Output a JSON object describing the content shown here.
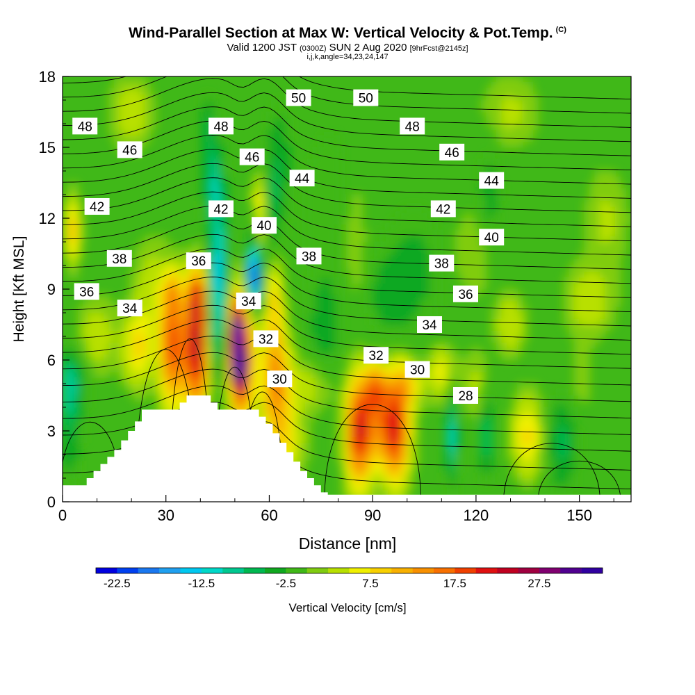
{
  "chart_data": {
    "type": "heatmap",
    "title": "Wind-Parallel Section at Max W: Vertical Velocity & Pot.Temp.",
    "copyright_mark": "(C)",
    "subtitle_valid": "Valid 1200 JST",
    "subtitle_utc": "(0300Z)",
    "subtitle_date": "SUN 2 Aug 2020",
    "subtitle_fcst": "[9hrFcst@2145z]",
    "params": "i,j,k,angle=34,23,24,147",
    "xlabel": "Distance [nm]",
    "ylabel": "Height [Kft MSL]",
    "xlim": [
      0,
      165
    ],
    "ylim": [
      0,
      18
    ],
    "xticks": [
      0,
      30,
      60,
      90,
      120,
      150
    ],
    "yticks": [
      0,
      3,
      6,
      9,
      12,
      15,
      18
    ],
    "colorbar_label": "Vertical Velocity [cm/s]",
    "colorbar_ticks": [
      "-22.5",
      "-12.5",
      "-2.5",
      "7.5",
      "17.5",
      "27.5"
    ],
    "colorbar_range": [
      -25,
      35
    ],
    "colorbar_step": 2.5,
    "colorbar_colors": [
      "#0000e0",
      "#0040f0",
      "#1a78f0",
      "#20a0f0",
      "#00c8f0",
      "#00d8c8",
      "#00c890",
      "#00b850",
      "#10a820",
      "#40b818",
      "#80cc10",
      "#b8e000",
      "#f0f000",
      "#f8d000",
      "#f8b000",
      "#f89000",
      "#f87000",
      "#f04000",
      "#e01010",
      "#c00020",
      "#a00040",
      "#800070",
      "#500090",
      "#3000a0"
    ],
    "theta_contour_labels": [
      {
        "text": "48",
        "x": 6.5,
        "y": 15.9
      },
      {
        "text": "46",
        "x": 19.5,
        "y": 14.9
      },
      {
        "text": "42",
        "x": 10,
        "y": 12.5
      },
      {
        "text": "38",
        "x": 16.5,
        "y": 10.3
      },
      {
        "text": "36",
        "x": 7,
        "y": 8.9
      },
      {
        "text": "34",
        "x": 19.5,
        "y": 8.2
      },
      {
        "text": "48",
        "x": 46,
        "y": 15.9
      },
      {
        "text": "42",
        "x": 46,
        "y": 12.4
      },
      {
        "text": "36",
        "x": 39.5,
        "y": 10.2
      },
      {
        "text": "46",
        "x": 55,
        "y": 14.6
      },
      {
        "text": "40",
        "x": 58.5,
        "y": 11.7
      },
      {
        "text": "34",
        "x": 54,
        "y": 8.5
      },
      {
        "text": "32",
        "x": 59,
        "y": 6.9
      },
      {
        "text": "30",
        "x": 63,
        "y": 5.2
      },
      {
        "text": "50",
        "x": 68.5,
        "y": 17.1
      },
      {
        "text": "44",
        "x": 69.5,
        "y": 13.7
      },
      {
        "text": "38",
        "x": 71.5,
        "y": 10.4
      },
      {
        "text": "50",
        "x": 88,
        "y": 17.1
      },
      {
        "text": "48",
        "x": 101.5,
        "y": 15.9
      },
      {
        "text": "32",
        "x": 91,
        "y": 6.2
      },
      {
        "text": "46",
        "x": 113,
        "y": 14.8
      },
      {
        "text": "42",
        "x": 110.5,
        "y": 12.4
      },
      {
        "text": "38",
        "x": 110,
        "y": 10.1
      },
      {
        "text": "34",
        "x": 106.5,
        "y": 7.5
      },
      {
        "text": "30",
        "x": 103,
        "y": 5.6
      },
      {
        "text": "44",
        "x": 124.5,
        "y": 13.6
      },
      {
        "text": "40",
        "x": 124.5,
        "y": 11.2
      },
      {
        "text": "36",
        "x": 117,
        "y": 8.8
      },
      {
        "text": "28",
        "x": 117,
        "y": 4.5
      }
    ],
    "terrain_profile_kft": [
      [
        0,
        0.7
      ],
      [
        6,
        0.7
      ],
      [
        7,
        1.0
      ],
      [
        9,
        1.3
      ],
      [
        11,
        1.6
      ],
      [
        13,
        1.9
      ],
      [
        15,
        2.2
      ],
      [
        17,
        2.6
      ],
      [
        19,
        3.0
      ],
      [
        21,
        3.4
      ],
      [
        23,
        3.9
      ],
      [
        32,
        3.9
      ],
      [
        34,
        4.2
      ],
      [
        36,
        4.5
      ],
      [
        41,
        4.5
      ],
      [
        43,
        4.2
      ],
      [
        45,
        3.9
      ],
      [
        55,
        3.9
      ],
      [
        57,
        3.6
      ],
      [
        59,
        3.3
      ],
      [
        61,
        2.9
      ],
      [
        63,
        2.5
      ],
      [
        65,
        2.1
      ],
      [
        67,
        1.7
      ],
      [
        69,
        1.3
      ],
      [
        71,
        1.0
      ],
      [
        73,
        0.7
      ],
      [
        75,
        0.4
      ],
      [
        77,
        0.3
      ],
      [
        165,
        0.3
      ]
    ]
  }
}
